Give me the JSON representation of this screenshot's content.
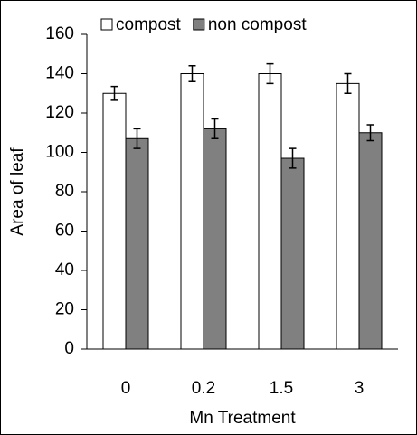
{
  "chart_data": {
    "type": "bar",
    "x_label": "Mn Treatment",
    "y_label": "Area of leaf",
    "categories": [
      "0",
      "0.2",
      "1.5",
      "3"
    ],
    "series": [
      {
        "name": "compost",
        "color": "#ffffff",
        "values": [
          130,
          140,
          140,
          135
        ],
        "errors": [
          3.5,
          4,
          5,
          5
        ]
      },
      {
        "name": "non compost",
        "color": "#808080",
        "values": [
          107,
          112,
          97,
          110
        ],
        "errors": [
          5,
          5,
          5,
          4
        ]
      }
    ],
    "ylim": [
      0,
      160
    ],
    "yticks": [
      0,
      20,
      40,
      60,
      80,
      100,
      120,
      140,
      160
    ],
    "grid": false,
    "legend": "top"
  }
}
